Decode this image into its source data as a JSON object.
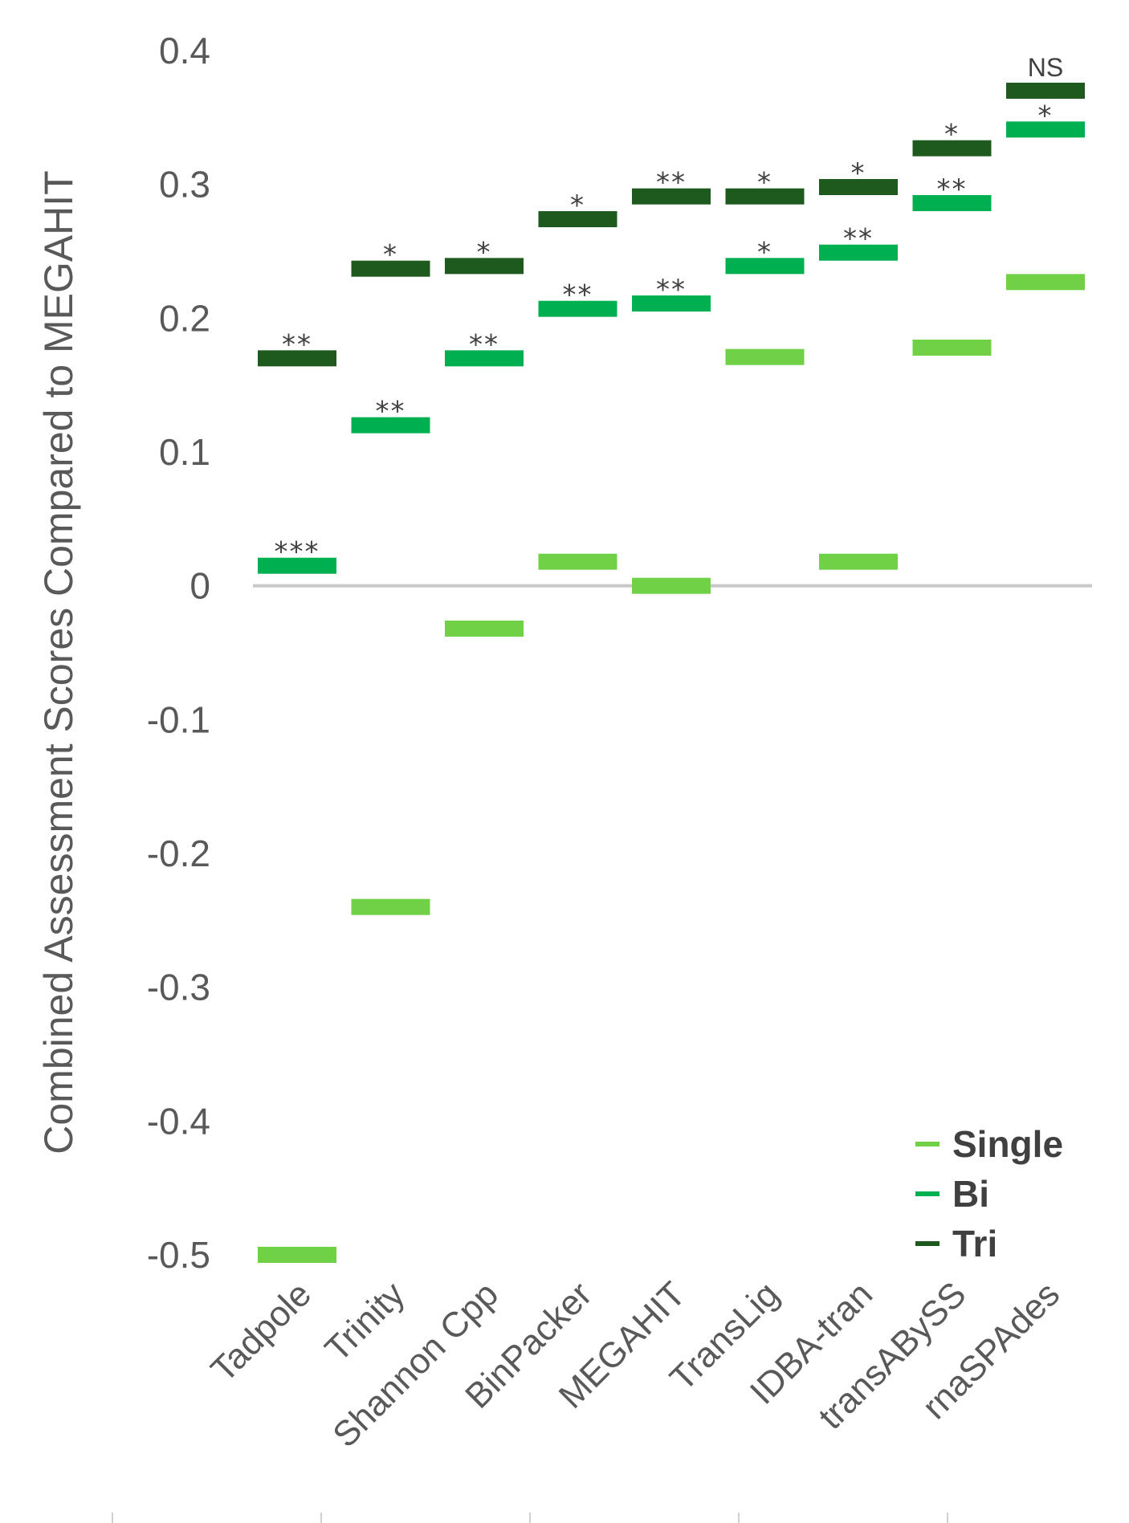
{
  "chart_data": {
    "type": "scatter",
    "marker": "horizontal-bar",
    "title": "",
    "xlabel": "",
    "ylabel": "Combined Assessment Scores Compared to MEGAHIT",
    "ylim": [
      -0.5,
      0.4
    ],
    "yticks": [
      "0.4",
      "0.3",
      "0.2",
      "0.1",
      "0",
      "-0.1",
      "-0.2",
      "-0.3",
      "-0.4",
      "-0.5"
    ],
    "categories": [
      "Tadpole",
      "Trinity",
      "Shannon Cpp",
      "BinPacker",
      "MEGAHIT",
      "TransLig",
      "IDBA-tran",
      "transABySS",
      "rnaSPAdes"
    ],
    "series": [
      {
        "name": "Single",
        "color": "#70d146",
        "values": [
          -0.5,
          -0.24,
          -0.032,
          0.018,
          0,
          0.171,
          0.018,
          0.178,
          0.227
        ],
        "annotations": [
          "",
          "",
          "",
          "",
          "",
          "",
          "",
          "",
          ""
        ]
      },
      {
        "name": "Bi",
        "color": "#00b050",
        "values": [
          0.015,
          0.12,
          0.17,
          0.207,
          0.211,
          0.239,
          0.249,
          0.286,
          0.341
        ],
        "annotations": [
          "***",
          "**",
          "**",
          "**",
          "**",
          "*",
          "**",
          "**",
          "*"
        ]
      },
      {
        "name": "Tri",
        "color": "#1e5a1e",
        "values": [
          0.17,
          0.237,
          0.239,
          0.274,
          0.291,
          0.291,
          0.298,
          0.327,
          0.37
        ],
        "annotations": [
          "**",
          "*",
          "*",
          "*",
          "**",
          "*",
          "*",
          "*",
          "NS"
        ]
      }
    ],
    "legend": {
      "position": "bottom-right",
      "labels": [
        "Single",
        "Bi",
        "Tri"
      ]
    },
    "zero_line": true
  }
}
